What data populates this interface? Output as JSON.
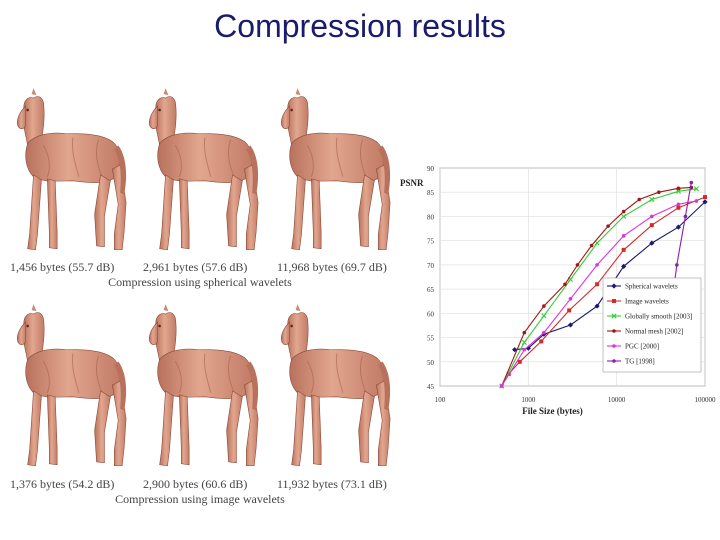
{
  "title": "Compression results",
  "colors": {
    "title": "#1b1b6e",
    "horse_skin": "#d99a82"
  },
  "horse_grid": {
    "rows": [
      {
        "captions": [
          "1,456 bytes (55.7 dB)",
          "2,961 bytes (57.6 dB)",
          "11,968 bytes (69.7 dB)"
        ],
        "group_caption": "Compression using spherical wavelets"
      },
      {
        "captions": [
          "1,376 bytes (54.2 dB)",
          "2,900 bytes (60.6 dB)",
          "11,932 bytes (73.1 dB)"
        ],
        "group_caption": "Compression using image wavelets"
      }
    ]
  },
  "chart_data": {
    "type": "line",
    "xlabel": "File Size (bytes)",
    "ylabel": "PSNR",
    "x_scale": "log",
    "xlim": [
      100,
      100000
    ],
    "ylim": [
      45,
      90
    ],
    "x_ticks": [
      "100",
      "1000",
      "10000",
      "100000"
    ],
    "y_ticks": [
      "45",
      "50",
      "55",
      "60",
      "65",
      "70",
      "75",
      "80",
      "85",
      "90"
    ],
    "grid": true,
    "legend_position": "bottom-right",
    "series": [
      {
        "name": "Spherical wavelets",
        "color": "#1a1a6e",
        "marker": "diamond",
        "points": [
          [
            700,
            52.5
          ],
          [
            1000,
            52.8
          ],
          [
            1500,
            55.7
          ],
          [
            3000,
            57.6
          ],
          [
            6000,
            61.5
          ],
          [
            12000,
            69.7
          ],
          [
            25000,
            74.5
          ],
          [
            50000,
            77.8
          ],
          [
            100000,
            83
          ]
        ]
      },
      {
        "name": "Image wavelets",
        "color": "#d42a2a",
        "marker": "square",
        "points": [
          [
            600,
            47.5
          ],
          [
            800,
            50
          ],
          [
            1400,
            54.2
          ],
          [
            2900,
            60.6
          ],
          [
            6000,
            66
          ],
          [
            12000,
            73.1
          ],
          [
            25000,
            78.2
          ],
          [
            50000,
            81.8
          ],
          [
            100000,
            84
          ]
        ]
      },
      {
        "name": "Globally smooth [2003]",
        "color": "#33cc33",
        "marker": "x",
        "points": [
          [
            500,
            45
          ],
          [
            900,
            54
          ],
          [
            1500,
            59.5
          ],
          [
            3000,
            67
          ],
          [
            6000,
            74.5
          ],
          [
            12000,
            80
          ],
          [
            25000,
            83.5
          ],
          [
            50000,
            85.2
          ],
          [
            80000,
            85.7
          ]
        ]
      },
      {
        "name": "Normal mesh [2002]",
        "color": "#a01818",
        "marker": "dot",
        "points": [
          [
            500,
            45
          ],
          [
            900,
            56
          ],
          [
            1500,
            61.5
          ],
          [
            2600,
            66
          ],
          [
            3600,
            70
          ],
          [
            5200,
            74
          ],
          [
            8000,
            78
          ],
          [
            12000,
            81
          ],
          [
            18000,
            83.5
          ],
          [
            30000,
            85
          ],
          [
            50000,
            85.8
          ],
          [
            70000,
            86
          ]
        ]
      },
      {
        "name": "PGC [2000]",
        "color": "#dd33dd",
        "marker": "dot",
        "points": [
          [
            500,
            45
          ],
          [
            900,
            52.5
          ],
          [
            1500,
            56
          ],
          [
            3000,
            63
          ],
          [
            6000,
            70
          ],
          [
            12000,
            76
          ],
          [
            25000,
            80
          ],
          [
            50000,
            82.5
          ],
          [
            80000,
            83.2
          ]
        ]
      },
      {
        "name": "TG [1998]",
        "color": "#8822aa",
        "marker": "dot",
        "points": [
          [
            40000,
            58.5
          ],
          [
            48000,
            70
          ],
          [
            60000,
            80
          ],
          [
            70000,
            87
          ]
        ]
      }
    ]
  }
}
